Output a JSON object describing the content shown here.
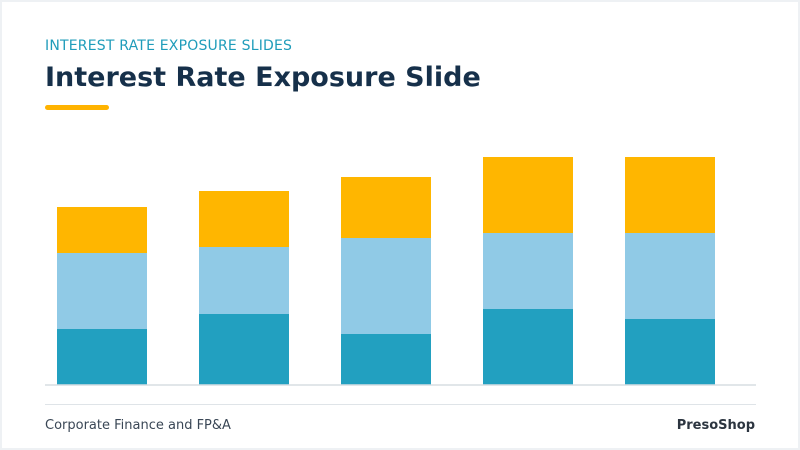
{
  "slide": {
    "kicker": "INTEREST RATE EXPOSURE SLIDES",
    "title": "Interest Rate Exposure Slide"
  },
  "footer": {
    "left": "Corporate Finance and FP&A",
    "right": "PresoShop"
  },
  "colors": {
    "accent": "#ffb300",
    "title": "#16304a",
    "kicker": "#1f9cba",
    "series_bottom": "#22a0c0",
    "series_middle": "#90cae6",
    "series_top": "#ffb600"
  },
  "chart_data": {
    "type": "bar",
    "stacked": true,
    "categories": [
      "",
      "",
      "",
      "",
      ""
    ],
    "series": [
      {
        "values": [
          56,
          71,
          51,
          76,
          66
        ]
      },
      {
        "values": [
          76,
          67,
          96,
          76,
          86
        ]
      },
      {
        "values": [
          46,
          56,
          61,
          76,
          76
        ]
      }
    ],
    "ylim": [
      0,
      230
    ],
    "grid": false,
    "legend": "none"
  }
}
